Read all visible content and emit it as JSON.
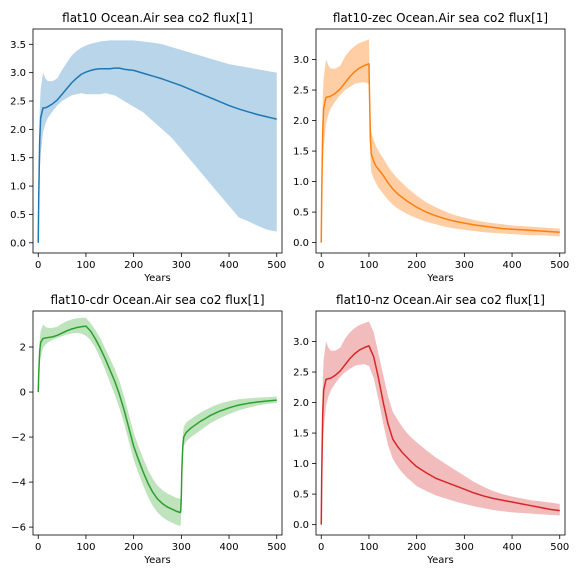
{
  "chart_data": [
    {
      "type": "line",
      "title": "flat10 Ocean.Air sea co2 flux[1]",
      "xlabel": "Years",
      "ylabel": "",
      "xlim": [
        -11,
        511
      ],
      "ylim": [
        -0.18,
        3.77
      ],
      "xticks": [
        0,
        100,
        200,
        300,
        400,
        500
      ],
      "yticks": [
        0.0,
        0.5,
        1.0,
        1.5,
        2.0,
        2.5,
        3.0,
        3.5
      ],
      "ytick_labels": [
        "0.0",
        "0.5",
        "1.0",
        "1.5",
        "2.0",
        "2.5",
        "3.0",
        "3.5"
      ],
      "color": "#1f77b4",
      "band_color": "#b9d5ea",
      "series": [
        {
          "x": [
            0,
            1,
            3,
            5,
            10,
            15,
            20,
            30,
            40,
            50,
            60,
            70,
            80,
            90,
            100,
            110,
            120,
            130,
            140,
            150,
            160,
            170,
            180,
            190,
            200,
            220,
            240,
            260,
            280,
            300,
            320,
            340,
            360,
            380,
            400,
            420,
            440,
            460,
            480,
            500
          ],
          "y": [
            0.0,
            0.8,
            1.8,
            2.2,
            2.38,
            2.38,
            2.4,
            2.45,
            2.52,
            2.62,
            2.72,
            2.82,
            2.9,
            2.97,
            3.01,
            3.04,
            3.06,
            3.07,
            3.07,
            3.07,
            3.08,
            3.08,
            3.06,
            3.05,
            3.04,
            2.99,
            2.94,
            2.89,
            2.83,
            2.77,
            2.7,
            2.63,
            2.56,
            2.49,
            2.42,
            2.36,
            2.31,
            2.26,
            2.22,
            2.18
          ],
          "lower": [
            0.0,
            0.5,
            1.2,
            1.55,
            1.95,
            2.1,
            2.2,
            2.32,
            2.42,
            2.5,
            2.55,
            2.6,
            2.62,
            2.64,
            2.62,
            2.62,
            2.62,
            2.62,
            2.64,
            2.62,
            2.6,
            2.55,
            2.5,
            2.45,
            2.4,
            2.3,
            2.15,
            2.0,
            1.85,
            1.65,
            1.45,
            1.25,
            1.05,
            0.85,
            0.65,
            0.45,
            0.38,
            0.3,
            0.23,
            0.2
          ],
          "upper": [
            0.0,
            1.2,
            2.3,
            2.7,
            3.0,
            2.9,
            2.85,
            2.85,
            2.9,
            3.05,
            3.18,
            3.3,
            3.38,
            3.44,
            3.48,
            3.51,
            3.53,
            3.55,
            3.56,
            3.57,
            3.57,
            3.57,
            3.57,
            3.57,
            3.57,
            3.55,
            3.53,
            3.5,
            3.45,
            3.4,
            3.35,
            3.3,
            3.25,
            3.2,
            3.15,
            3.12,
            3.09,
            3.06,
            3.03,
            3.0
          ]
        }
      ]
    },
    {
      "type": "line",
      "title": "flat10-zec Ocean.Air sea co2 flux[1]",
      "xlabel": "Years",
      "ylabel": "",
      "xlim": [
        -11,
        511
      ],
      "ylim": [
        -0.17,
        3.5
      ],
      "xticks": [
        0,
        100,
        200,
        300,
        400,
        500
      ],
      "yticks": [
        0.0,
        0.5,
        1.0,
        1.5,
        2.0,
        2.5,
        3.0
      ],
      "ytick_labels": [
        "0.0",
        "0.5",
        "1.0",
        "1.5",
        "2.0",
        "2.5",
        "3.0"
      ],
      "color": "#ff7f0e",
      "band_color": "#ffcea4",
      "series": [
        {
          "x": [
            0,
            1,
            3,
            5,
            10,
            15,
            20,
            30,
            40,
            50,
            60,
            70,
            80,
            90,
            100,
            101,
            103,
            105,
            110,
            115,
            120,
            130,
            140,
            150,
            160,
            180,
            200,
            220,
            240,
            260,
            280,
            300,
            320,
            340,
            360,
            380,
            400,
            420,
            440,
            460,
            480,
            500
          ],
          "y": [
            0.0,
            0.8,
            1.8,
            2.2,
            2.38,
            2.39,
            2.4,
            2.45,
            2.52,
            2.62,
            2.72,
            2.8,
            2.86,
            2.9,
            2.93,
            2.5,
            1.7,
            1.45,
            1.33,
            1.25,
            1.2,
            1.1,
            0.98,
            0.88,
            0.8,
            0.68,
            0.58,
            0.5,
            0.44,
            0.39,
            0.35,
            0.32,
            0.29,
            0.27,
            0.25,
            0.23,
            0.22,
            0.21,
            0.2,
            0.19,
            0.18,
            0.17
          ],
          "lower": [
            0.0,
            0.5,
            1.2,
            1.55,
            1.95,
            2.1,
            2.2,
            2.32,
            2.42,
            2.5,
            2.55,
            2.6,
            2.62,
            2.63,
            2.6,
            2.2,
            1.4,
            1.15,
            1.05,
            0.97,
            0.9,
            0.8,
            0.7,
            0.62,
            0.56,
            0.47,
            0.4,
            0.34,
            0.3,
            0.26,
            0.23,
            0.21,
            0.19,
            0.17,
            0.16,
            0.15,
            0.14,
            0.13,
            0.12,
            0.12,
            0.11,
            0.1
          ],
          "upper": [
            0.0,
            1.2,
            2.3,
            2.7,
            3.0,
            2.9,
            2.85,
            2.85,
            2.9,
            3.05,
            3.15,
            3.22,
            3.27,
            3.3,
            3.33,
            2.9,
            2.1,
            1.8,
            1.68,
            1.58,
            1.5,
            1.38,
            1.25,
            1.14,
            1.05,
            0.9,
            0.77,
            0.66,
            0.58,
            0.51,
            0.45,
            0.41,
            0.37,
            0.34,
            0.32,
            0.3,
            0.28,
            0.27,
            0.26,
            0.25,
            0.24,
            0.23
          ]
        }
      ]
    },
    {
      "type": "line",
      "title": "flat10-cdr Ocean.Air sea co2 flux[1]",
      "xlabel": "Years",
      "ylabel": "",
      "xlim": [
        -11,
        511
      ],
      "ylim": [
        -6.35,
        3.6
      ],
      "xticks": [
        0,
        100,
        200,
        300,
        400,
        500
      ],
      "yticks": [
        -6,
        -4,
        -2,
        0,
        2
      ],
      "ytick_labels": [
        "−6",
        "−4",
        "−2",
        "0",
        "2"
      ],
      "color": "#2ca02c",
      "band_color": "#bfe3bd",
      "series": [
        {
          "x": [
            0,
            1,
            3,
            5,
            10,
            15,
            20,
            30,
            40,
            50,
            60,
            70,
            80,
            90,
            100,
            110,
            120,
            130,
            140,
            150,
            160,
            170,
            180,
            190,
            200,
            210,
            220,
            230,
            240,
            250,
            260,
            270,
            280,
            290,
            298,
            299,
            300,
            301,
            303,
            305,
            310,
            320,
            330,
            340,
            350,
            360,
            370,
            380,
            390,
            400,
            410,
            420,
            440,
            460,
            480,
            500
          ],
          "y": [
            0.0,
            0.8,
            1.8,
            2.2,
            2.38,
            2.4,
            2.42,
            2.45,
            2.52,
            2.62,
            2.72,
            2.8,
            2.86,
            2.9,
            2.93,
            2.7,
            2.35,
            1.95,
            1.5,
            1.0,
            0.5,
            -0.1,
            -0.8,
            -1.6,
            -2.4,
            -3.0,
            -3.55,
            -4.05,
            -4.45,
            -4.75,
            -4.95,
            -5.1,
            -5.2,
            -5.3,
            -5.35,
            -5.2,
            -4.6,
            -3.5,
            -2.4,
            -2.0,
            -1.8,
            -1.6,
            -1.45,
            -1.3,
            -1.18,
            -1.05,
            -0.95,
            -0.85,
            -0.78,
            -0.7,
            -0.64,
            -0.58,
            -0.5,
            -0.44,
            -0.4,
            -0.36
          ],
          "lower": [
            0.0,
            0.5,
            1.2,
            1.55,
            1.95,
            2.1,
            2.2,
            2.32,
            2.4,
            2.48,
            2.55,
            2.6,
            2.62,
            2.6,
            2.5,
            2.3,
            1.95,
            1.5,
            1.0,
            0.45,
            -0.1,
            -0.7,
            -1.4,
            -2.2,
            -3.0,
            -3.6,
            -4.15,
            -4.65,
            -5.05,
            -5.35,
            -5.55,
            -5.7,
            -5.8,
            -5.9,
            -5.95,
            -5.8,
            -5.2,
            -4.1,
            -2.9,
            -2.4,
            -2.2,
            -2.0,
            -1.85,
            -1.7,
            -1.55,
            -1.4,
            -1.28,
            -1.17,
            -1.07,
            -0.98,
            -0.9,
            -0.82,
            -0.7,
            -0.6,
            -0.53,
            -0.48
          ],
          "upper": [
            0.0,
            1.2,
            2.3,
            2.7,
            3.0,
            2.9,
            2.85,
            2.85,
            2.9,
            3.05,
            3.15,
            3.22,
            3.27,
            3.3,
            3.3,
            3.05,
            2.75,
            2.4,
            1.95,
            1.5,
            1.05,
            0.5,
            -0.2,
            -1.0,
            -1.8,
            -2.4,
            -2.95,
            -3.45,
            -3.85,
            -4.15,
            -4.35,
            -4.5,
            -4.6,
            -4.7,
            -4.75,
            -4.6,
            -4.0,
            -2.9,
            -1.9,
            -1.55,
            -1.35,
            -1.2,
            -1.05,
            -0.92,
            -0.8,
            -0.7,
            -0.6,
            -0.52,
            -0.46,
            -0.4,
            -0.36,
            -0.32,
            -0.28,
            -0.25,
            -0.23,
            -0.2
          ]
        }
      ]
    },
    {
      "type": "line",
      "title": "flat10-nz Ocean.Air sea co2 flux[1]",
      "xlabel": "Years",
      "ylabel": "",
      "xlim": [
        -11,
        511
      ],
      "ylim": [
        -0.17,
        3.5
      ],
      "xticks": [
        0,
        100,
        200,
        300,
        400,
        500
      ],
      "yticks": [
        0.0,
        0.5,
        1.0,
        1.5,
        2.0,
        2.5,
        3.0
      ],
      "ytick_labels": [
        "0.0",
        "0.5",
        "1.0",
        "1.5",
        "2.0",
        "2.5",
        "3.0"
      ],
      "color": "#d62728",
      "band_color": "#f2bcbd",
      "series": [
        {
          "x": [
            0,
            1,
            3,
            5,
            10,
            15,
            20,
            30,
            40,
            50,
            60,
            70,
            80,
            90,
            100,
            110,
            120,
            130,
            140,
            150,
            160,
            170,
            180,
            190,
            200,
            220,
            240,
            260,
            280,
            300,
            320,
            340,
            360,
            380,
            400,
            420,
            440,
            460,
            480,
            500
          ],
          "y": [
            0.0,
            0.8,
            1.8,
            2.2,
            2.38,
            2.39,
            2.4,
            2.45,
            2.52,
            2.62,
            2.72,
            2.8,
            2.86,
            2.9,
            2.93,
            2.75,
            2.4,
            2.0,
            1.65,
            1.4,
            1.28,
            1.18,
            1.1,
            1.02,
            0.95,
            0.85,
            0.76,
            0.7,
            0.64,
            0.58,
            0.52,
            0.47,
            0.43,
            0.4,
            0.37,
            0.34,
            0.31,
            0.28,
            0.25,
            0.23
          ],
          "lower": [
            0.0,
            0.5,
            1.2,
            1.55,
            1.95,
            2.1,
            2.2,
            2.32,
            2.42,
            2.5,
            2.55,
            2.6,
            2.62,
            2.63,
            2.6,
            2.4,
            2.05,
            1.65,
            1.3,
            1.08,
            0.95,
            0.85,
            0.77,
            0.7,
            0.63,
            0.55,
            0.48,
            0.43,
            0.38,
            0.34,
            0.3,
            0.27,
            0.24,
            0.22,
            0.2,
            0.19,
            0.18,
            0.17,
            0.16,
            0.15
          ],
          "upper": [
            0.0,
            1.2,
            2.3,
            2.7,
            3.0,
            2.9,
            2.85,
            2.85,
            2.9,
            3.05,
            3.15,
            3.22,
            3.27,
            3.3,
            3.33,
            3.15,
            2.8,
            2.45,
            2.1,
            1.85,
            1.72,
            1.6,
            1.5,
            1.42,
            1.35,
            1.22,
            1.1,
            1.0,
            0.9,
            0.8,
            0.7,
            0.62,
            0.55,
            0.5,
            0.46,
            0.43,
            0.4,
            0.38,
            0.36,
            0.34
          ]
        }
      ]
    }
  ]
}
